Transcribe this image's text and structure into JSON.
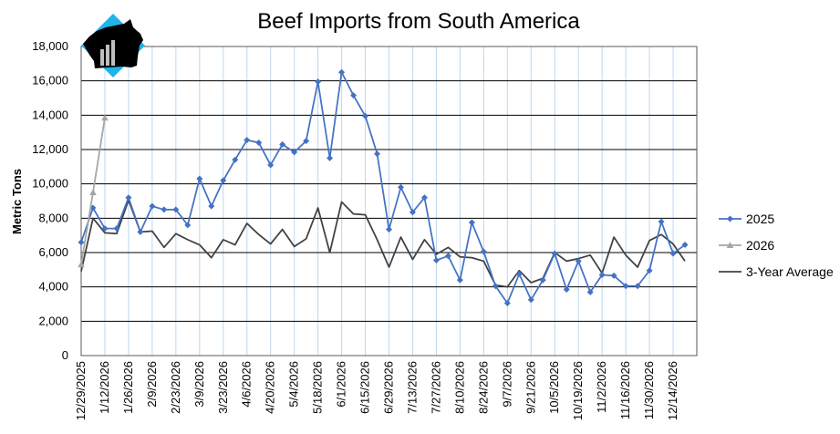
{
  "chart_data": {
    "type": "line",
    "title": "Beef Imports from South America",
    "xlabel": "",
    "ylabel": "Metric Tons",
    "ylim": [
      0,
      18000
    ],
    "yticks": [
      0,
      2000,
      4000,
      6000,
      8000,
      10000,
      12000,
      14000,
      16000,
      18000
    ],
    "ytick_labels": [
      "0",
      "2,000",
      "4,000",
      "6,000",
      "8,000",
      "10,000",
      "12,000",
      "14,000",
      "16,000",
      "18,000"
    ],
    "x_tick_labels": [
      "12/29/2025",
      "1/12/2026",
      "1/26/2026",
      "2/9/2026",
      "2/23/2026",
      "3/9/2026",
      "3/23/2026",
      "4/6/2026",
      "4/20/2026",
      "5/4/2026",
      "5/18/2026",
      "6/1/2026",
      "6/15/2026",
      "6/29/2026",
      "7/13/2026",
      "7/27/2026",
      "8/10/2026",
      "8/24/2026",
      "9/7/2026",
      "9/21/2026",
      "10/5/2026",
      "10/19/2026",
      "11/2/2026",
      "11/16/2026",
      "11/30/2026",
      "12/14/2026"
    ],
    "tick_every": 2,
    "num_weeks": 53,
    "grid": true,
    "series": [
      {
        "name": "2025",
        "color": "#4472C4",
        "marker": "diamond",
        "values": [
          6600,
          8600,
          7400,
          7400,
          9200,
          7200,
          8700,
          8500,
          8500,
          7600,
          10300,
          8700,
          10200,
          11400,
          12550,
          12400,
          11100,
          12300,
          11850,
          12500,
          15950,
          11500,
          16500,
          15150,
          13950,
          11750,
          7350,
          9800,
          8350,
          9200,
          5550,
          5800,
          4400,
          7750,
          6050,
          4050,
          3050,
          4750,
          3250,
          4400,
          5950,
          3850,
          5500,
          3700,
          4700,
          4650,
          4050,
          4050,
          4950,
          7800,
          5950,
          6450
        ]
      },
      {
        "name": "2026",
        "color": "#A5A5A5",
        "marker": "triangle",
        "values": [
          5300,
          9500,
          13850
        ]
      },
      {
        "name": "3-Year Average",
        "color": "#404040",
        "marker": "none",
        "values": [
          4900,
          8000,
          7150,
          7100,
          9050,
          7200,
          7250,
          6300,
          7100,
          6750,
          6450,
          5700,
          6750,
          6450,
          7700,
          7050,
          6500,
          7350,
          6350,
          6800,
          8600,
          6000,
          8950,
          8250,
          8200,
          6750,
          5150,
          6900,
          5600,
          6750,
          5900,
          6300,
          5750,
          5700,
          5500,
          4100,
          4000,
          4950,
          4250,
          4500,
          6000,
          5500,
          5650,
          5850,
          4800,
          6900,
          5850,
          5150,
          6700,
          7050,
          6500,
          5500
        ]
      }
    ]
  }
}
